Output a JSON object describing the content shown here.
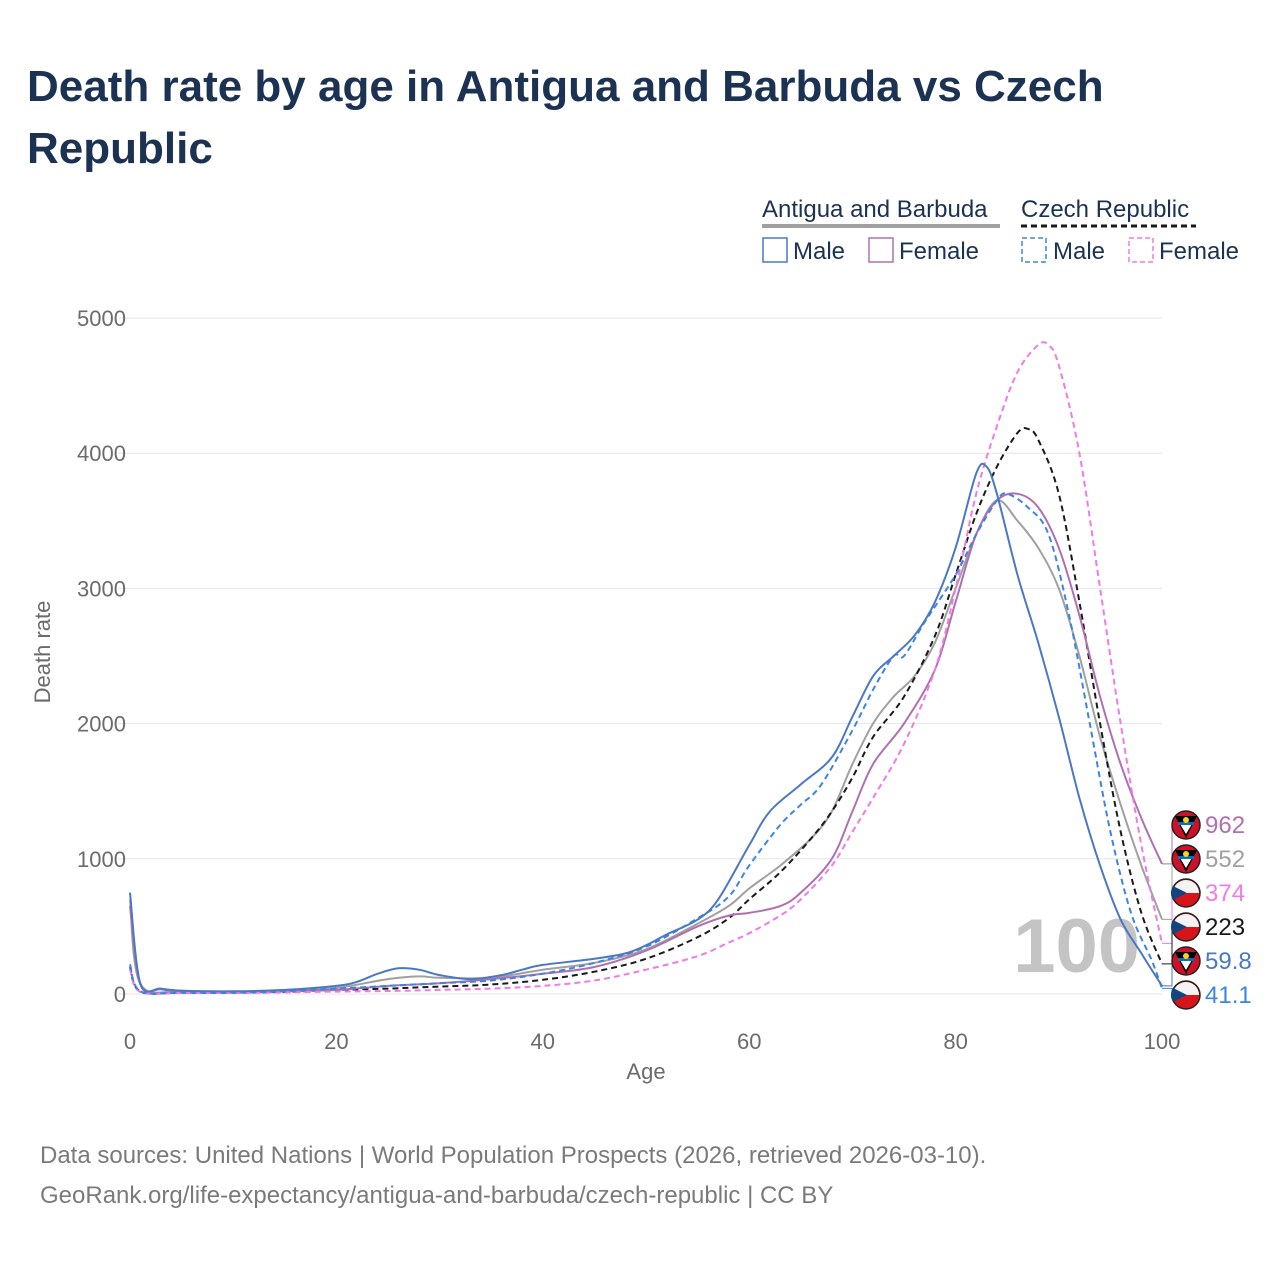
{
  "title": "Death rate by age in Antigua and Barbuda vs Czech Republic",
  "source_line1": "Data sources: United Nations | World Population Prospects (2026, retrieved 2026-03-10).",
  "source_line2": "GeoRank.org/life-expectancy/antigua-and-barbuda/czech-republic | CC BY",
  "legend": {
    "group1": "Antigua and Barbuda",
    "group2": "Czech Republic",
    "male": "Male",
    "female": "Female"
  },
  "colors": {
    "ag_male": "#4a78c4",
    "ag_female": "#b070b0",
    "ag_total": "#a0a0a0",
    "cz_male": "#3a86e0",
    "cz_female": "#f07ae6",
    "cz_total": "#1a1a1a"
  },
  "chart_data": {
    "type": "line",
    "title": "Death rate by age in Antigua and Barbuda vs Czech Republic",
    "xlabel": "Age",
    "ylabel": "Death rate",
    "xlim": [
      0,
      100
    ],
    "ylim": [
      0,
      5000
    ],
    "xticks": [
      0,
      20,
      40,
      60,
      80,
      100
    ],
    "yticks": [
      0,
      1000,
      2000,
      3000,
      4000,
      5000
    ],
    "year_watermark": "100",
    "series": [
      {
        "id": "ag_male",
        "name": "Antigua and Barbuda Male",
        "style": "solid",
        "end_label": "59.8",
        "points": [
          [
            0,
            750
          ],
          [
            1,
            80
          ],
          [
            3,
            40
          ],
          [
            5,
            25
          ],
          [
            10,
            20
          ],
          [
            15,
            30
          ],
          [
            20,
            60
          ],
          [
            22,
            90
          ],
          [
            24,
            150
          ],
          [
            26,
            190
          ],
          [
            28,
            180
          ],
          [
            30,
            140
          ],
          [
            33,
            110
          ],
          [
            36,
            140
          ],
          [
            38,
            180
          ],
          [
            40,
            215
          ],
          [
            45,
            260
          ],
          [
            48,
            300
          ],
          [
            50,
            360
          ],
          [
            52,
            440
          ],
          [
            55,
            550
          ],
          [
            57,
            700
          ],
          [
            60,
            1100
          ],
          [
            62,
            1350
          ],
          [
            65,
            1550
          ],
          [
            68,
            1750
          ],
          [
            70,
            2050
          ],
          [
            72,
            2350
          ],
          [
            74,
            2500
          ],
          [
            76,
            2650
          ],
          [
            78,
            2900
          ],
          [
            80,
            3300
          ],
          [
            82,
            3850
          ],
          [
            83,
            3900
          ],
          [
            84,
            3700
          ],
          [
            86,
            3100
          ],
          [
            88,
            2600
          ],
          [
            90,
            2050
          ],
          [
            92,
            1450
          ],
          [
            94,
            950
          ],
          [
            96,
            550
          ],
          [
            98,
            300
          ],
          [
            100,
            59.8
          ]
        ]
      },
      {
        "id": "ag_female",
        "name": "Antigua and Barbuda Female",
        "style": "solid",
        "end_label": "962",
        "points": [
          [
            0,
            650
          ],
          [
            1,
            70
          ],
          [
            3,
            35
          ],
          [
            5,
            20
          ],
          [
            10,
            15
          ],
          [
            15,
            20
          ],
          [
            20,
            30
          ],
          [
            25,
            60
          ],
          [
            30,
            80
          ],
          [
            35,
            110
          ],
          [
            40,
            150
          ],
          [
            45,
            200
          ],
          [
            50,
            320
          ],
          [
            55,
            500
          ],
          [
            58,
            580
          ],
          [
            60,
            600
          ],
          [
            63,
            650
          ],
          [
            65,
            750
          ],
          [
            68,
            1000
          ],
          [
            70,
            1350
          ],
          [
            72,
            1700
          ],
          [
            75,
            2000
          ],
          [
            78,
            2400
          ],
          [
            80,
            2900
          ],
          [
            82,
            3400
          ],
          [
            84,
            3650
          ],
          [
            86,
            3700
          ],
          [
            88,
            3600
          ],
          [
            90,
            3300
          ],
          [
            92,
            2800
          ],
          [
            94,
            2200
          ],
          [
            96,
            1700
          ],
          [
            98,
            1300
          ],
          [
            100,
            962
          ]
        ]
      },
      {
        "id": "ag_total",
        "name": "Antigua and Barbuda Total",
        "style": "solid",
        "end_label": "552",
        "points": [
          [
            0,
            700
          ],
          [
            1,
            75
          ],
          [
            5,
            22
          ],
          [
            10,
            18
          ],
          [
            15,
            25
          ],
          [
            20,
            45
          ],
          [
            25,
            110
          ],
          [
            28,
            130
          ],
          [
            30,
            120
          ],
          [
            35,
            120
          ],
          [
            40,
            180
          ],
          [
            45,
            230
          ],
          [
            50,
            330
          ],
          [
            55,
            520
          ],
          [
            58,
            650
          ],
          [
            60,
            780
          ],
          [
            63,
            950
          ],
          [
            66,
            1150
          ],
          [
            68,
            1350
          ],
          [
            70,
            1700
          ],
          [
            72,
            2000
          ],
          [
            74,
            2200
          ],
          [
            76,
            2350
          ],
          [
            78,
            2600
          ],
          [
            80,
            3000
          ],
          [
            82,
            3400
          ],
          [
            84,
            3650
          ],
          [
            86,
            3500
          ],
          [
            88,
            3300
          ],
          [
            90,
            3000
          ],
          [
            92,
            2500
          ],
          [
            94,
            1900
          ],
          [
            96,
            1400
          ],
          [
            98,
            950
          ],
          [
            100,
            552
          ]
        ]
      },
      {
        "id": "cz_male",
        "name": "Czech Republic Male",
        "style": "dashed",
        "end_label": "41.1",
        "points": [
          [
            0,
            220
          ],
          [
            1,
            20
          ],
          [
            5,
            10
          ],
          [
            10,
            10
          ],
          [
            15,
            20
          ],
          [
            20,
            40
          ],
          [
            25,
            60
          ],
          [
            30,
            80
          ],
          [
            35,
            100
          ],
          [
            40,
            150
          ],
          [
            45,
            230
          ],
          [
            50,
            350
          ],
          [
            55,
            560
          ],
          [
            58,
            720
          ],
          [
            60,
            950
          ],
          [
            63,
            1250
          ],
          [
            65,
            1400
          ],
          [
            67,
            1550
          ],
          [
            70,
            1950
          ],
          [
            72,
            2250
          ],
          [
            74,
            2500
          ],
          [
            75,
            2500
          ],
          [
            77,
            2750
          ],
          [
            80,
            3100
          ],
          [
            82,
            3400
          ],
          [
            84,
            3650
          ],
          [
            85,
            3700
          ],
          [
            87,
            3600
          ],
          [
            89,
            3400
          ],
          [
            91,
            2800
          ],
          [
            93,
            2000
          ],
          [
            95,
            1200
          ],
          [
            97,
            600
          ],
          [
            99,
            250
          ],
          [
            100,
            41.1
          ]
        ]
      },
      {
        "id": "cz_female",
        "name": "Czech Republic Female",
        "style": "dashed",
        "end_label": "374",
        "points": [
          [
            0,
            180
          ],
          [
            1,
            15
          ],
          [
            5,
            8
          ],
          [
            10,
            8
          ],
          [
            15,
            12
          ],
          [
            20,
            18
          ],
          [
            25,
            22
          ],
          [
            30,
            30
          ],
          [
            35,
            40
          ],
          [
            40,
            60
          ],
          [
            45,
            100
          ],
          [
            50,
            180
          ],
          [
            55,
            280
          ],
          [
            58,
            380
          ],
          [
            60,
            450
          ],
          [
            63,
            580
          ],
          [
            65,
            700
          ],
          [
            68,
            950
          ],
          [
            70,
            1200
          ],
          [
            72,
            1450
          ],
          [
            75,
            1850
          ],
          [
            78,
            2400
          ],
          [
            80,
            3000
          ],
          [
            82,
            3700
          ],
          [
            84,
            4200
          ],
          [
            86,
            4600
          ],
          [
            88,
            4800
          ],
          [
            89,
            4800
          ],
          [
            90,
            4650
          ],
          [
            92,
            4000
          ],
          [
            94,
            3000
          ],
          [
            96,
            2000
          ],
          [
            98,
            1100
          ],
          [
            100,
            374
          ]
        ]
      },
      {
        "id": "cz_total",
        "name": "Czech Republic Total",
        "style": "dashed",
        "end_label": "223",
        "points": [
          [
            0,
            200
          ],
          [
            1,
            18
          ],
          [
            5,
            9
          ],
          [
            10,
            9
          ],
          [
            15,
            16
          ],
          [
            20,
            30
          ],
          [
            25,
            40
          ],
          [
            30,
            55
          ],
          [
            35,
            70
          ],
          [
            40,
            105
          ],
          [
            45,
            165
          ],
          [
            50,
            260
          ],
          [
            55,
            420
          ],
          [
            58,
            560
          ],
          [
            60,
            700
          ],
          [
            63,
            900
          ],
          [
            66,
            1150
          ],
          [
            68,
            1350
          ],
          [
            70,
            1600
          ],
          [
            72,
            1900
          ],
          [
            75,
            2200
          ],
          [
            78,
            2650
          ],
          [
            80,
            3100
          ],
          [
            82,
            3550
          ],
          [
            84,
            3900
          ],
          [
            86,
            4150
          ],
          [
            87,
            4180
          ],
          [
            88,
            4100
          ],
          [
            90,
            3700
          ],
          [
            92,
            2900
          ],
          [
            94,
            2000
          ],
          [
            96,
            1200
          ],
          [
            98,
            600
          ],
          [
            100,
            223
          ]
        ]
      }
    ]
  }
}
